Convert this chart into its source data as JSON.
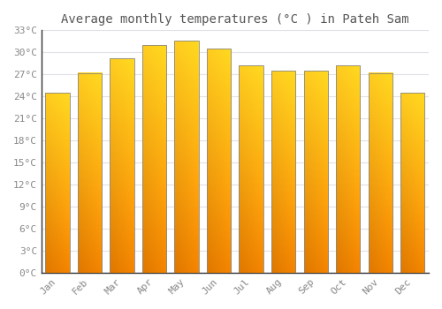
{
  "title": "Average monthly temperatures (°C ) in Pateh Sam",
  "months": [
    "Jan",
    "Feb",
    "Mar",
    "Apr",
    "May",
    "Jun",
    "Jul",
    "Aug",
    "Sep",
    "Oct",
    "Nov",
    "Dec"
  ],
  "values": [
    24.5,
    27.2,
    29.2,
    31.0,
    31.6,
    30.5,
    28.2,
    27.5,
    27.5,
    28.2,
    27.2,
    24.5
  ],
  "bar_color_bottom": "#E07800",
  "bar_color_top": "#FFD040",
  "bar_edge_color": "#888888",
  "ylim": [
    0,
    33
  ],
  "yticks": [
    0,
    3,
    6,
    9,
    12,
    15,
    18,
    21,
    24,
    27,
    30,
    33
  ],
  "ytick_labels": [
    "0°C",
    "3°C",
    "6°C",
    "9°C",
    "12°C",
    "15°C",
    "18°C",
    "21°C",
    "24°C",
    "27°C",
    "30°C",
    "33°C"
  ],
  "background_color": "#FFFFFF",
  "grid_color": "#E0E0E8",
  "title_fontsize": 10,
  "tick_fontsize": 8,
  "tick_color": "#888888",
  "font_family": "monospace"
}
